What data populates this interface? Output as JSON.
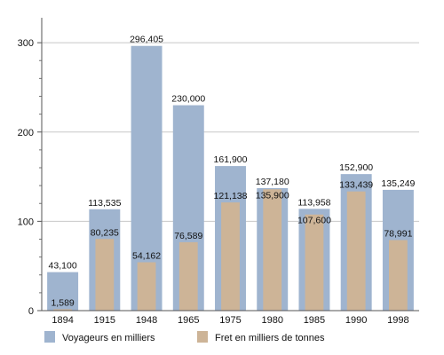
{
  "chart_data": {
    "type": "bar",
    "categories": [
      "1894",
      "1915",
      "1948",
      "1965",
      "1975",
      "1980",
      "1985",
      "1990",
      "1998"
    ],
    "series": [
      {
        "name": "Voyageurs en milliers",
        "color": "#9fb4cf",
        "values": [
          43.1,
          113.535,
          296.405,
          230.0,
          161.9,
          137.18,
          113.958,
          152.9,
          135.249
        ],
        "labels": [
          "43,100",
          "113,535",
          "296,405",
          "230,000",
          "161,900",
          "137,180",
          "113,958",
          "152,900",
          "135,249"
        ]
      },
      {
        "name": "Fret en milliers de tonnes",
        "color": "#cdb497",
        "values": [
          1.589,
          80.235,
          54.162,
          76.589,
          121.138,
          135.9,
          107.6,
          133.439,
          78.991
        ],
        "labels": [
          "1,589",
          "80,235",
          "54,162",
          "76,589",
          "121,138",
          "135,900",
          "107,600",
          "133,439",
          "78,991"
        ]
      }
    ],
    "yticks": [
      "0",
      "100",
      "200",
      "300"
    ],
    "ylim": [
      0,
      320
    ],
    "grid": true,
    "legend_position": "bottom"
  }
}
